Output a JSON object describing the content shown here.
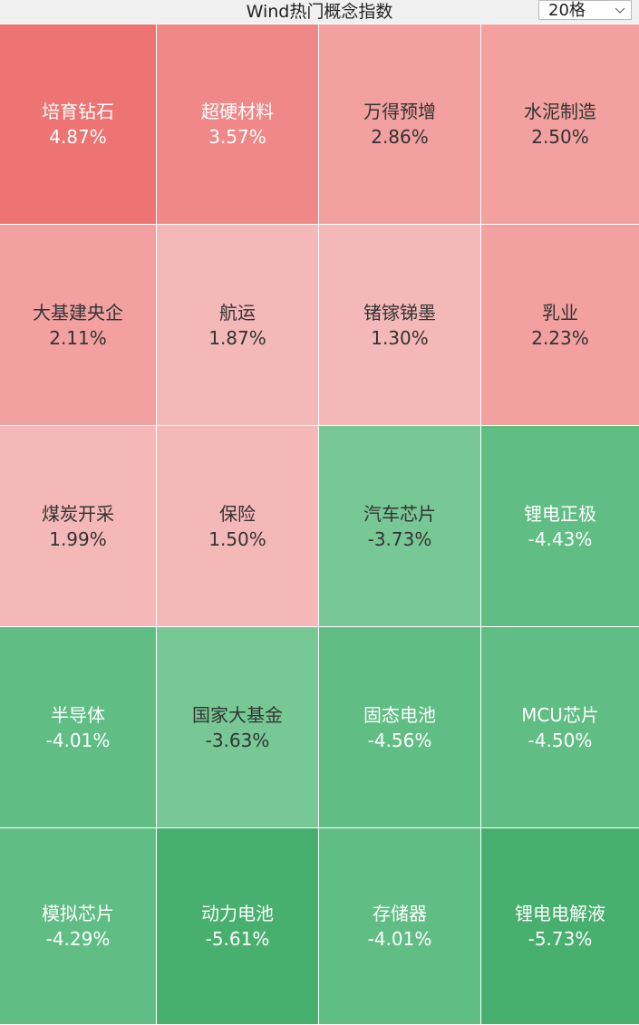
{
  "header": {
    "title": "Wind热门概念指数",
    "selector": "20格"
  },
  "tiles": [
    {
      "name": "培育钻石",
      "change": "4.87%",
      "color": "#ee7474",
      "text_color": "#ffffff"
    },
    {
      "name": "超硬材料",
      "change": "3.57%",
      "color": "#f08888",
      "text_color": "#ffffff"
    },
    {
      "name": "万得预增",
      "change": "2.86%",
      "color": "#f2a0a0",
      "text_color": "#333333"
    },
    {
      "name": "水泥制造",
      "change": "2.50%",
      "color": "#f2a0a0",
      "text_color": "#333333"
    },
    {
      "name": "大基建央企",
      "change": "2.11%",
      "color": "#f2a0a0",
      "text_color": "#333333"
    },
    {
      "name": "航运",
      "change": "1.87%",
      "color": "#f4b8b8",
      "text_color": "#333333"
    },
    {
      "name": "锗镓锑墨",
      "change": "1.30%",
      "color": "#f4b8b8",
      "text_color": "#333333"
    },
    {
      "name": "乳业",
      "change": "2.23%",
      "color": "#f2a0a0",
      "text_color": "#333333"
    },
    {
      "name": "煤炭开采",
      "change": "1.99%",
      "color": "#f4b8b8",
      "text_color": "#333333"
    },
    {
      "name": "保险",
      "change": "1.50%",
      "color": "#f4b8b8",
      "text_color": "#333333"
    },
    {
      "name": "汽车芯片",
      "change": "-3.73%",
      "color": "#78c896",
      "text_color": "#333333"
    },
    {
      "name": "锂电正极",
      "change": "-4.43%",
      "color": "#60be84",
      "text_color": "#ffffff"
    },
    {
      "name": "半导体",
      "change": "-4.01%",
      "color": "#60be84",
      "text_color": "#ffffff"
    },
    {
      "name": "国家大基金",
      "change": "-3.63%",
      "color": "#78c896",
      "text_color": "#333333"
    },
    {
      "name": "固态电池",
      "change": "-4.56%",
      "color": "#60be84",
      "text_color": "#ffffff"
    },
    {
      "name": "MCU芯片",
      "change": "-4.50%",
      "color": "#60be84",
      "text_color": "#ffffff"
    },
    {
      "name": "模拟芯片",
      "change": "-4.29%",
      "color": "#60be84",
      "text_color": "#ffffff"
    },
    {
      "name": "动力电池",
      "change": "-5.61%",
      "color": "#48b06e",
      "text_color": "#ffffff"
    },
    {
      "name": "存储器",
      "change": "-4.01%",
      "color": "#60be84",
      "text_color": "#ffffff"
    },
    {
      "name": "锂电电解液",
      "change": "-5.73%",
      "color": "#48b06e",
      "text_color": "#ffffff"
    }
  ]
}
